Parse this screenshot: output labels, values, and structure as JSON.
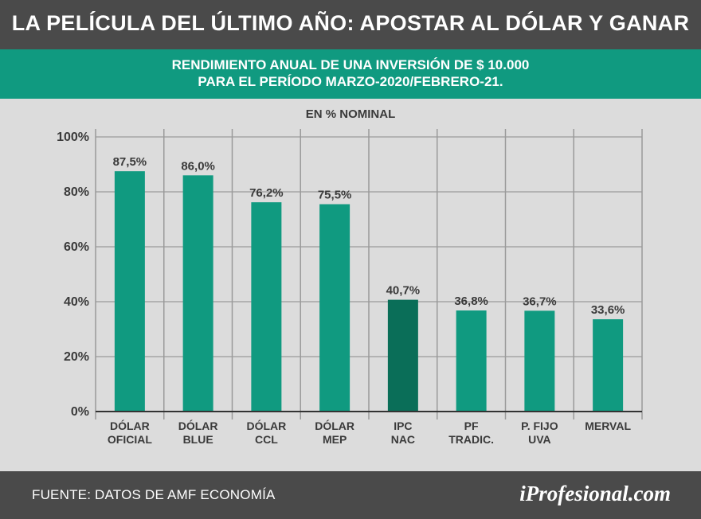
{
  "header": {
    "title": "LA PELÍCULA DEL ÚLTIMO AÑO: APOSTAR AL DÓLAR Y GANAR"
  },
  "band": {
    "subtitle": "RENDIMIENTO ANUAL DE UNA INVERSIÓN DE $ 10.000\nPARA EL PERÍODO MARZO-2020/FEBRERO-21."
  },
  "chart_data": {
    "type": "bar",
    "unit_label": "EN % NOMINAL",
    "categories": [
      [
        "DÓLAR",
        "OFICIAL"
      ],
      [
        "DÓLAR",
        "BLUE"
      ],
      [
        "DÓLAR",
        "CCL"
      ],
      [
        "DÓLAR",
        "MEP"
      ],
      [
        "IPC",
        "NAC"
      ],
      [
        "PF",
        "TRADIC."
      ],
      [
        "P.  FIJO",
        "UVA"
      ],
      [
        "MERVAL"
      ]
    ],
    "values": [
      87.5,
      86.0,
      76.2,
      75.5,
      40.7,
      36.8,
      36.7,
      33.6
    ],
    "value_labels": [
      "87,5%",
      "86,0%",
      "76,2%",
      "75,5%",
      "40,7%",
      "36,8%",
      "36,7%",
      "33,6%"
    ],
    "yticks": [
      0,
      20,
      40,
      60,
      80,
      100
    ],
    "ytick_labels": [
      "0%",
      "20%",
      "40%",
      "60%",
      "80%",
      "100%"
    ],
    "ylim": [
      0,
      100
    ],
    "grid": true,
    "colors": {
      "bar": "#109a80",
      "highlight_bar": "#0a6e58",
      "grid": "#9a9a9a",
      "axis": "#333333"
    },
    "highlight_index": 4
  },
  "footer": {
    "source": "FUENTE: DATOS DE AMF ECONOMÍA",
    "brand": "iProfesional.com"
  }
}
